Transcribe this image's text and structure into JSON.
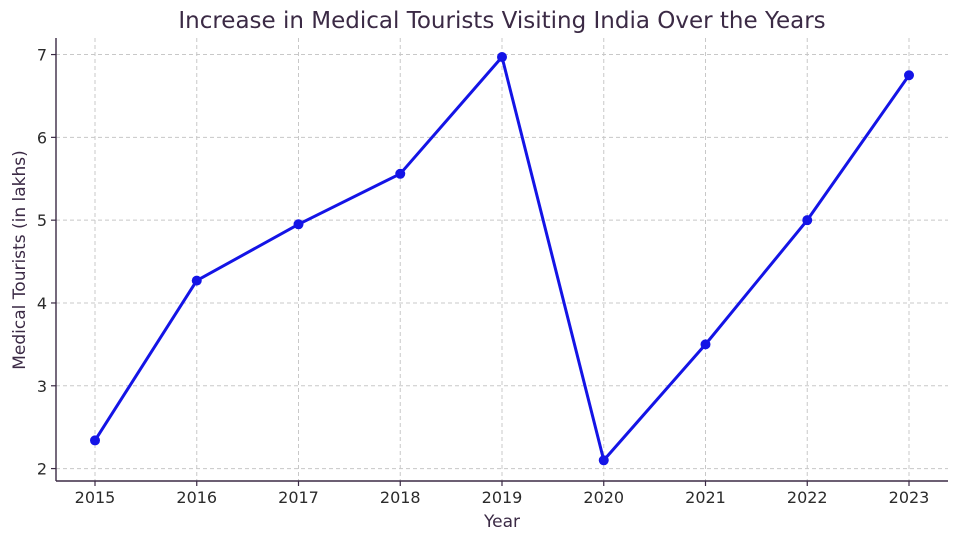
{
  "chart_data": {
    "type": "line",
    "title": "Increase in Medical Tourists Visiting India Over the Years",
    "xlabel": "Year",
    "ylabel": "Medical Tourists (in lakhs)",
    "x": [
      "2015",
      "2016",
      "2017",
      "2018",
      "2019",
      "2020",
      "2021",
      "2022",
      "2023"
    ],
    "yticks": [
      "2",
      "3",
      "4",
      "5",
      "6",
      "7"
    ],
    "ylim": [
      1.85,
      7.2
    ],
    "grid": true,
    "series": [
      {
        "color": "#1414e6",
        "values": [
          2.34,
          4.27,
          4.95,
          5.56,
          6.97,
          2.1,
          3.5,
          5.0,
          6.75
        ]
      }
    ]
  }
}
